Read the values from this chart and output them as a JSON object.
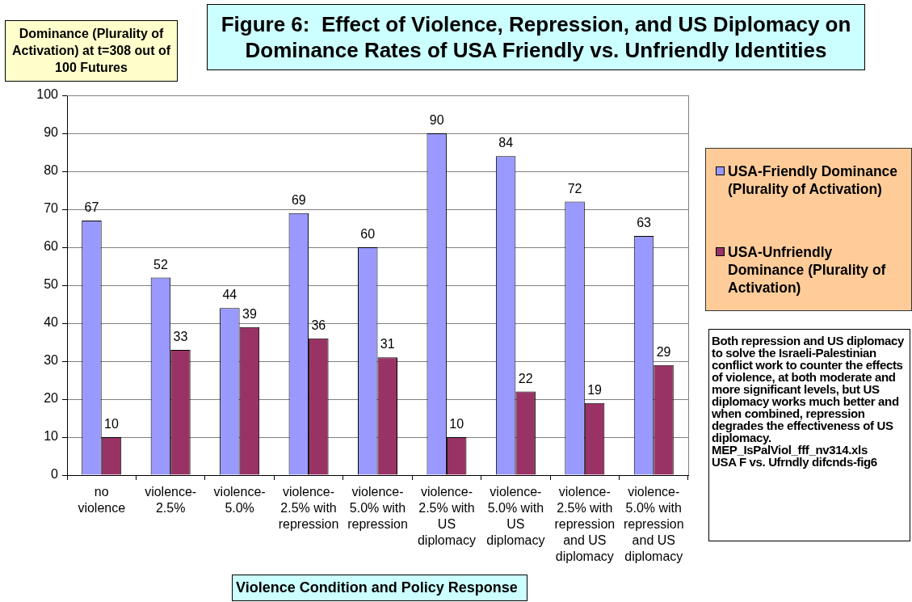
{
  "chart_data": {
    "type": "bar",
    "title": "Figure 6:  Effect of Violence, Repression, and US Diplomacy on Dominance Rates of USA Friendly vs. Unfriendly Identities",
    "ylabel": "Dominance (Plurality of Activation) at t=308 out of 100 Futures",
    "xlabel": "Violence Condition and Policy Response",
    "categories": [
      "no violence",
      "violence-2.5%",
      "violence-5.0%",
      "violence-2.5% with repression",
      "violence-5.0% with repression",
      "violence-2.5% with US diplomacy",
      "violence-5.0% with US diplomacy",
      "violence-2.5% with repression and US diplomacy",
      "violence-5.0% with repression and US diplomacy"
    ],
    "series": [
      {
        "name": "USA-Friendly Dominance (Plurality of Activation)",
        "color": "#9999ff",
        "values": [
          67,
          52,
          44,
          69,
          60,
          90,
          84,
          72,
          63
        ]
      },
      {
        "name": "USA-Unfriendly Dominance (Plurality of Activation)",
        "color": "#993366",
        "values": [
          10,
          33,
          39,
          36,
          31,
          10,
          22,
          19,
          29
        ]
      }
    ],
    "ylim": [
      0,
      100
    ],
    "yticks": [
      0,
      10,
      20,
      30,
      40,
      50,
      60,
      70,
      80,
      90,
      100
    ],
    "grid": "y",
    "legend": "right",
    "data_labels": true,
    "annotations": [
      "Both repression and US diplomacy to solve the Israeli-Palestinian conflict work to counter the effects of violence, at both moderate and more significant levels, but US diplomacy works much better and when combined, repression degrades the effectiveness of US diplomacy.",
      "MEP_IsPalViol_fff_nv314.xls",
      "USA F vs. Ufrndly difcnds-fig6"
    ]
  }
}
